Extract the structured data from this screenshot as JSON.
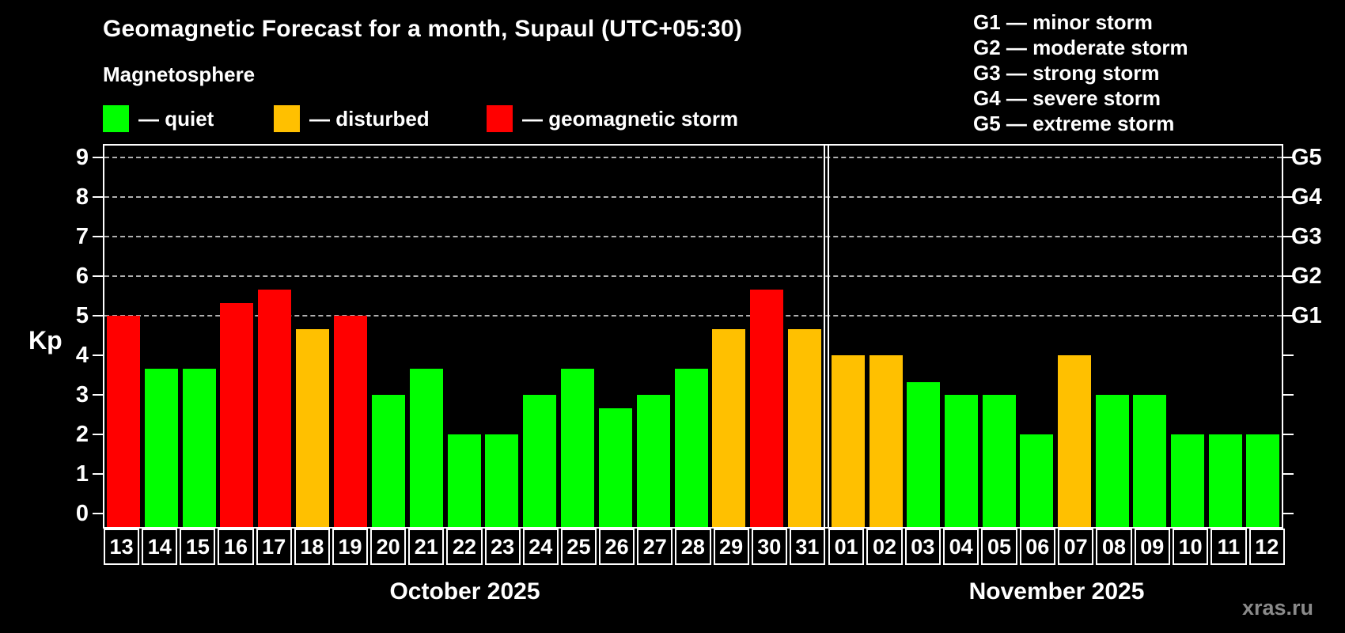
{
  "header": {
    "title": "Geomagnetic Forecast for a month, Supaul (UTC+05:30)",
    "subtitle": "Magnetosphere",
    "legend_items": [
      {
        "key": "quiet",
        "label": "— quiet"
      },
      {
        "key": "disturbed",
        "label": "— disturbed"
      },
      {
        "key": "storm",
        "label": "— geomagnetic storm"
      }
    ],
    "g_legend": [
      "G1 — minor storm",
      "G2 — moderate storm",
      "G3 — strong storm",
      "G4 — severe storm",
      "G5 — extreme storm"
    ]
  },
  "footer": {
    "watermark": "xras.ru"
  },
  "colors": {
    "quiet": "#00ff00",
    "disturbed": "#ffc000",
    "storm": "#ff0000",
    "grid": "#b0b0b0",
    "axis": "#ffffff",
    "background": "#000000",
    "watermark": "#8a8a8a"
  },
  "chart_data": {
    "type": "bar",
    "title": "Geomagnetic Forecast for a month, Supaul (UTC+05:30)",
    "ylabel": "Kp",
    "ylim": [
      0,
      9
    ],
    "y_ticks": [
      0,
      1,
      2,
      3,
      4,
      5,
      6,
      7,
      8,
      9
    ],
    "gridlines": [
      5,
      6,
      7,
      8,
      9
    ],
    "grid": "dashed horizontal at storm levels only",
    "legend_position": "top-left",
    "right_axis": [
      {
        "kp": 5,
        "label": "G1"
      },
      {
        "kp": 6,
        "label": "G2"
      },
      {
        "kp": 7,
        "label": "G3"
      },
      {
        "kp": 8,
        "label": "G4"
      },
      {
        "kp": 9,
        "label": "G5"
      }
    ],
    "series": [
      {
        "month": "October 2025",
        "days": [
          "13",
          "14",
          "15",
          "16",
          "17",
          "18",
          "19",
          "20",
          "21",
          "22",
          "23",
          "24",
          "25",
          "26",
          "27",
          "28",
          "29",
          "30",
          "31"
        ],
        "values": [
          5.0,
          3.67,
          3.67,
          5.33,
          5.67,
          4.67,
          5.0,
          3.0,
          3.67,
          2.0,
          2.0,
          3.0,
          3.67,
          2.67,
          3.0,
          3.67,
          4.67,
          5.67,
          4.67
        ],
        "status": [
          "storm",
          "quiet",
          "quiet",
          "storm",
          "storm",
          "disturbed",
          "storm",
          "quiet",
          "quiet",
          "quiet",
          "quiet",
          "quiet",
          "quiet",
          "quiet",
          "quiet",
          "quiet",
          "disturbed",
          "storm",
          "disturbed"
        ]
      },
      {
        "month": "November 2025",
        "days": [
          "01",
          "02",
          "03",
          "04",
          "05",
          "06",
          "07",
          "08",
          "09",
          "10",
          "11",
          "12"
        ],
        "values": [
          4.0,
          4.0,
          3.33,
          3.0,
          3.0,
          2.0,
          4.0,
          3.0,
          3.0,
          2.0,
          2.0,
          2.0
        ],
        "status": [
          "disturbed",
          "disturbed",
          "quiet",
          "quiet",
          "quiet",
          "quiet",
          "disturbed",
          "quiet",
          "quiet",
          "quiet",
          "quiet",
          "quiet"
        ]
      }
    ]
  }
}
